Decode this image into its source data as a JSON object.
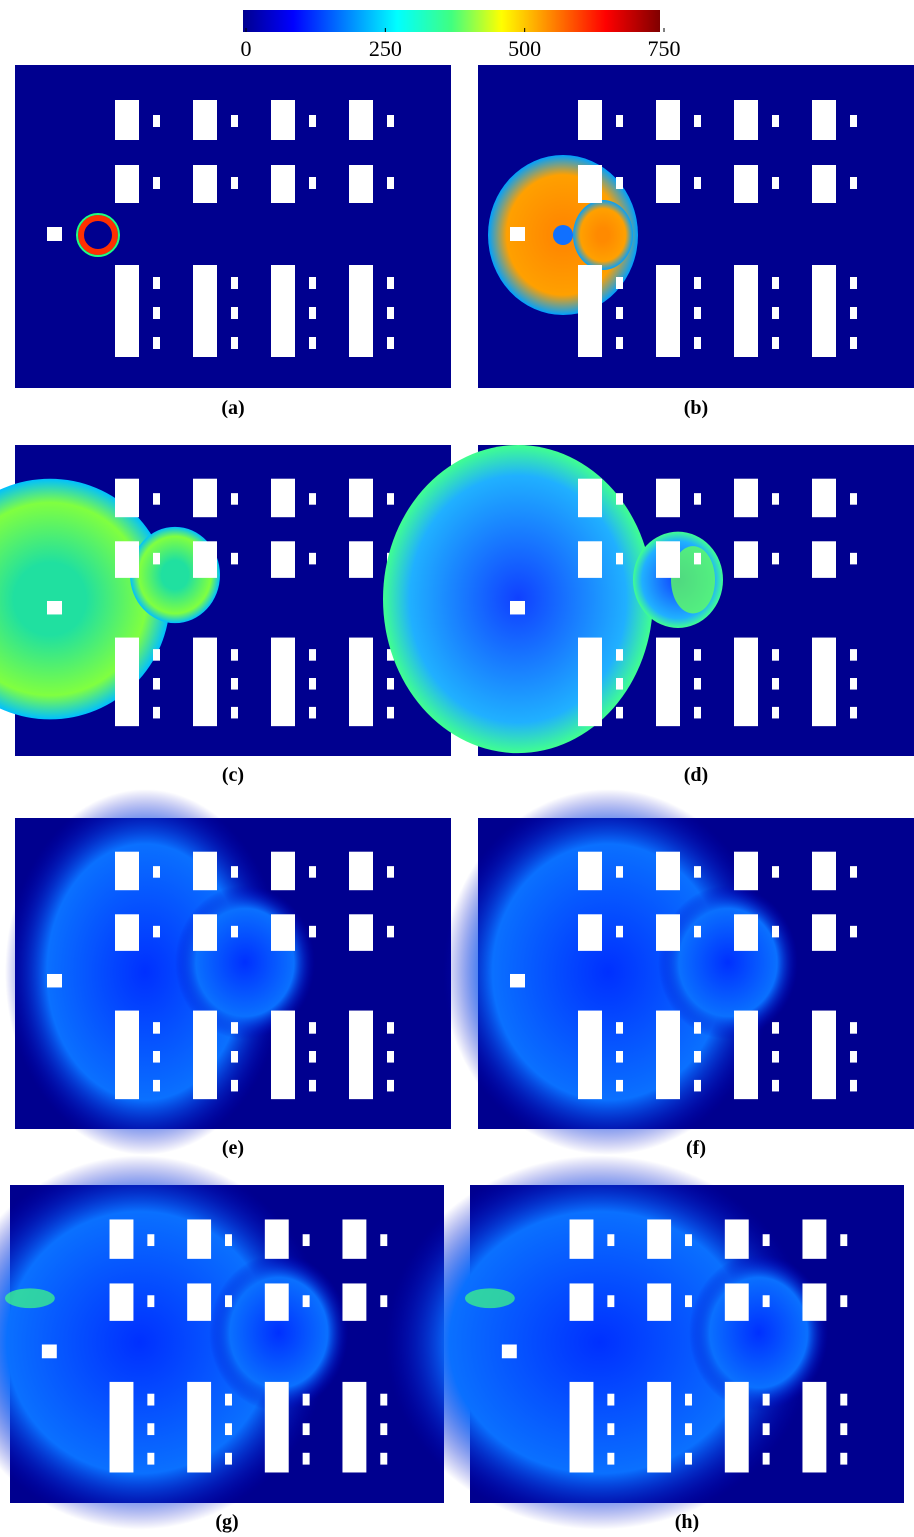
{
  "colorbar": {
    "lim": [
      0,
      750
    ],
    "ticks": [
      0,
      250,
      500,
      750
    ]
  },
  "panels": [
    {
      "label": "(a)"
    },
    {
      "label": "(b)"
    },
    {
      "label": "(c)"
    },
    {
      "label": "(d)"
    },
    {
      "label": "(e)"
    },
    {
      "label": "(f)"
    },
    {
      "label": "(g)"
    },
    {
      "label": "(h)"
    }
  ]
}
